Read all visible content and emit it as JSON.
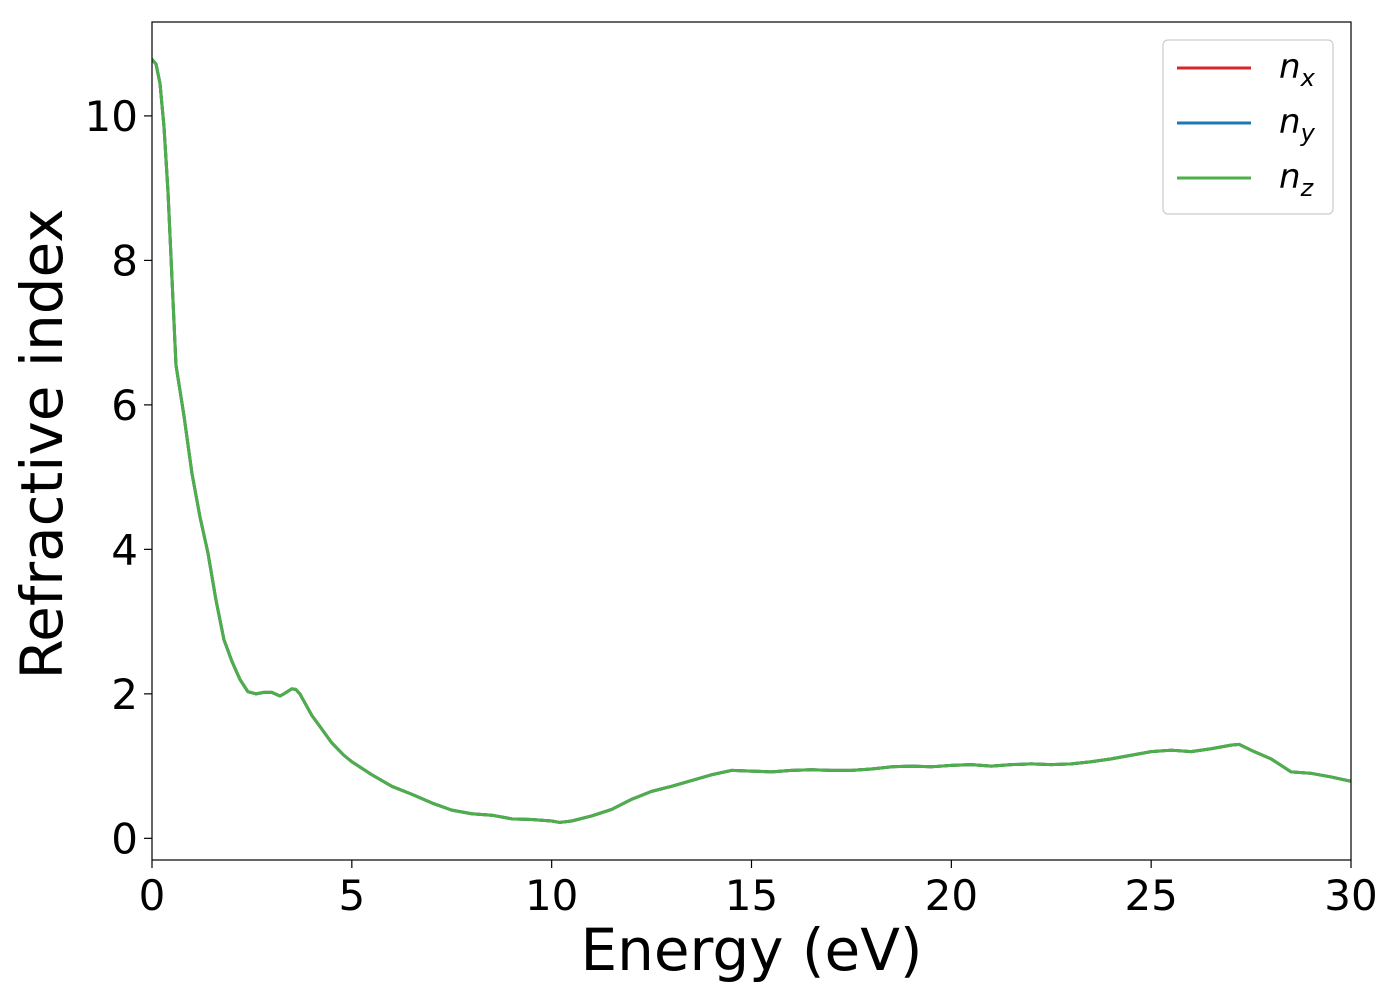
{
  "chart_data": {
    "type": "line",
    "xlabel": "Energy (eV)",
    "ylabel": "Refractive index",
    "xlim": [
      0,
      30
    ],
    "ylim": [
      -0.3,
      11.3
    ],
    "xticks": [
      0,
      5,
      10,
      15,
      20,
      25,
      30
    ],
    "yticks": [
      0,
      2,
      4,
      6,
      8,
      10
    ],
    "grid": false,
    "legend_position": "top-right",
    "x": [
      0.0,
      0.1,
      0.2,
      0.3,
      0.4,
      0.5,
      0.6,
      0.7,
      0.8,
      1.0,
      1.2,
      1.4,
      1.6,
      1.8,
      2.0,
      2.2,
      2.4,
      2.6,
      2.8,
      3.0,
      3.2,
      3.3,
      3.5,
      3.6,
      3.7,
      3.8,
      4.0,
      4.2,
      4.5,
      4.8,
      5.0,
      5.5,
      6.0,
      6.5,
      7.0,
      7.5,
      8.0,
      8.5,
      9.0,
      9.5,
      10.0,
      10.2,
      10.5,
      11.0,
      11.5,
      12.0,
      12.5,
      13.0,
      13.5,
      14.0,
      14.5,
      15.0,
      15.5,
      16.0,
      16.5,
      17.0,
      17.5,
      18.0,
      18.5,
      19.0,
      19.5,
      20.0,
      20.5,
      21.0,
      21.5,
      22.0,
      22.5,
      23.0,
      23.5,
      24.0,
      24.5,
      25.0,
      25.5,
      26.0,
      26.5,
      27.0,
      27.2,
      27.5,
      28.0,
      28.5,
      29.0,
      29.5,
      30.0
    ],
    "series": [
      {
        "name": "n_x",
        "color": "#d62728",
        "y": [
          10.78,
          10.72,
          10.45,
          9.85,
          8.95,
          7.75,
          6.55,
          6.2,
          5.85,
          5.05,
          4.45,
          3.95,
          3.3,
          2.75,
          2.45,
          2.2,
          2.03,
          2.0,
          2.02,
          2.02,
          1.97,
          2.0,
          2.07,
          2.06,
          2.0,
          1.9,
          1.7,
          1.55,
          1.32,
          1.15,
          1.06,
          0.88,
          0.72,
          0.61,
          0.49,
          0.39,
          0.34,
          0.32,
          0.27,
          0.26,
          0.24,
          0.22,
          0.24,
          0.31,
          0.4,
          0.54,
          0.65,
          0.72,
          0.8,
          0.88,
          0.94,
          0.93,
          0.92,
          0.94,
          0.95,
          0.94,
          0.94,
          0.96,
          0.99,
          1.0,
          0.99,
          1.01,
          1.02,
          1.0,
          1.02,
          1.03,
          1.02,
          1.03,
          1.06,
          1.1,
          1.15,
          1.2,
          1.22,
          1.2,
          1.24,
          1.29,
          1.3,
          1.22,
          1.1,
          0.92,
          0.9,
          0.85,
          0.79
        ]
      },
      {
        "name": "n_y",
        "color": "#1f77b4",
        "y": [
          10.78,
          10.72,
          10.45,
          9.85,
          8.95,
          7.75,
          6.55,
          6.2,
          5.85,
          5.05,
          4.45,
          3.95,
          3.3,
          2.75,
          2.45,
          2.2,
          2.03,
          2.0,
          2.02,
          2.02,
          1.97,
          2.0,
          2.07,
          2.06,
          2.0,
          1.9,
          1.7,
          1.55,
          1.32,
          1.15,
          1.06,
          0.88,
          0.72,
          0.61,
          0.49,
          0.39,
          0.34,
          0.32,
          0.27,
          0.26,
          0.24,
          0.22,
          0.24,
          0.31,
          0.4,
          0.54,
          0.65,
          0.72,
          0.8,
          0.88,
          0.94,
          0.93,
          0.92,
          0.94,
          0.95,
          0.94,
          0.94,
          0.96,
          0.99,
          1.0,
          0.99,
          1.01,
          1.02,
          1.0,
          1.02,
          1.03,
          1.02,
          1.03,
          1.06,
          1.1,
          1.15,
          1.2,
          1.22,
          1.2,
          1.24,
          1.29,
          1.3,
          1.22,
          1.1,
          0.92,
          0.9,
          0.85,
          0.79
        ]
      },
      {
        "name": "n_z",
        "color": "#4daf4a",
        "y": [
          10.78,
          10.72,
          10.45,
          9.85,
          8.95,
          7.75,
          6.55,
          6.2,
          5.85,
          5.05,
          4.45,
          3.95,
          3.3,
          2.75,
          2.45,
          2.2,
          2.03,
          2.0,
          2.02,
          2.02,
          1.97,
          2.0,
          2.07,
          2.06,
          2.0,
          1.9,
          1.7,
          1.55,
          1.32,
          1.15,
          1.06,
          0.88,
          0.72,
          0.61,
          0.49,
          0.39,
          0.34,
          0.32,
          0.27,
          0.26,
          0.24,
          0.22,
          0.24,
          0.31,
          0.4,
          0.54,
          0.65,
          0.72,
          0.8,
          0.88,
          0.94,
          0.93,
          0.92,
          0.94,
          0.95,
          0.94,
          0.94,
          0.96,
          0.99,
          1.0,
          0.99,
          1.01,
          1.02,
          1.0,
          1.02,
          1.03,
          1.02,
          1.03,
          1.06,
          1.1,
          1.15,
          1.2,
          1.22,
          1.2,
          1.24,
          1.29,
          1.3,
          1.22,
          1.1,
          0.92,
          0.9,
          0.85,
          0.79
        ]
      }
    ],
    "legend": [
      {
        "base": "n",
        "sub": "x",
        "color": "#d62728"
      },
      {
        "base": "n",
        "sub": "y",
        "color": "#1f77b4"
      },
      {
        "base": "n",
        "sub": "z",
        "color": "#4daf4a"
      }
    ]
  }
}
